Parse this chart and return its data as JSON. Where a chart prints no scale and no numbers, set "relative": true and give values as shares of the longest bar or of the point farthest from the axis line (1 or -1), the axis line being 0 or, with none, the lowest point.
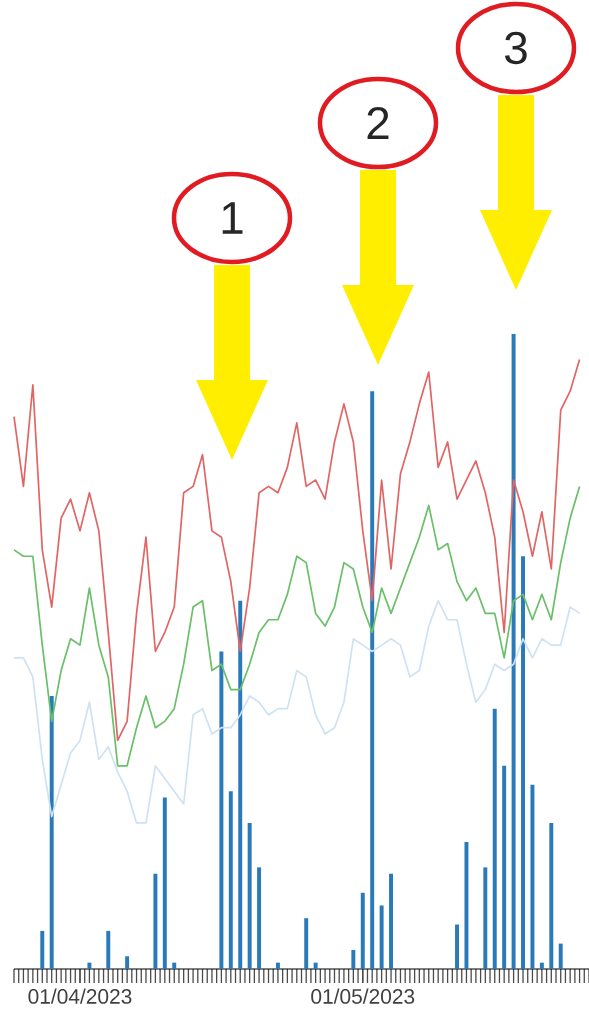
{
  "chart_data": {
    "type": "line",
    "relative": true,
    "x": [
      "2023-03-25",
      "2023-03-26",
      "2023-03-27",
      "2023-03-28",
      "2023-03-29",
      "2023-03-30",
      "2023-03-31",
      "2023-04-01",
      "2023-04-02",
      "2023-04-03",
      "2023-04-04",
      "2023-04-05",
      "2023-04-06",
      "2023-04-07",
      "2023-04-08",
      "2023-04-09",
      "2023-04-10",
      "2023-04-11",
      "2023-04-12",
      "2023-04-13",
      "2023-04-14",
      "2023-04-15",
      "2023-04-16",
      "2023-04-17",
      "2023-04-18",
      "2023-04-19",
      "2023-04-20",
      "2023-04-21",
      "2023-04-22",
      "2023-04-23",
      "2023-04-24",
      "2023-04-25",
      "2023-04-26",
      "2023-04-27",
      "2023-04-28",
      "2023-04-29",
      "2023-04-30",
      "2023-05-01",
      "2023-05-02",
      "2023-05-03",
      "2023-05-04",
      "2023-05-05",
      "2023-05-06",
      "2023-05-07",
      "2023-05-08",
      "2023-05-09",
      "2023-05-10",
      "2023-05-11",
      "2023-05-12",
      "2023-05-13",
      "2023-05-14",
      "2023-05-15",
      "2023-05-16",
      "2023-05-17",
      "2023-05-18",
      "2023-05-19",
      "2023-05-20",
      "2023-05-21",
      "2023-05-22",
      "2023-05-23",
      "2023-05-24"
    ],
    "series": [
      {
        "color": "#e06666",
        "values": [
          0.87,
          0.76,
          0.92,
          0.66,
          0.57,
          0.71,
          0.74,
          0.69,
          0.75,
          0.69,
          0.53,
          0.36,
          0.39,
          0.56,
          0.68,
          0.5,
          0.53,
          0.57,
          0.75,
          0.76,
          0.81,
          0.69,
          0.68,
          0.61,
          0.5,
          0.6,
          0.75,
          0.76,
          0.75,
          0.79,
          0.86,
          0.76,
          0.77,
          0.74,
          0.83,
          0.89,
          0.83,
          0.69,
          0.58,
          0.77,
          0.63,
          0.78,
          0.83,
          0.89,
          0.94,
          0.79,
          0.83,
          0.74,
          0.77,
          0.8,
          0.75,
          0.68,
          0.53,
          0.77,
          0.72,
          0.65,
          0.72,
          0.63,
          0.88,
          0.91,
          0.96
        ]
      },
      {
        "color": "#6abf69",
        "values": [
          0.66,
          0.65,
          0.65,
          0.51,
          0.39,
          0.47,
          0.52,
          0.51,
          0.6,
          0.51,
          0.46,
          0.32,
          0.32,
          0.38,
          0.43,
          0.38,
          0.39,
          0.41,
          0.48,
          0.57,
          0.58,
          0.47,
          0.48,
          0.44,
          0.44,
          0.48,
          0.53,
          0.55,
          0.55,
          0.59,
          0.65,
          0.64,
          0.56,
          0.54,
          0.57,
          0.64,
          0.63,
          0.57,
          0.53,
          0.6,
          0.56,
          0.6,
          0.64,
          0.68,
          0.73,
          0.66,
          0.67,
          0.61,
          0.58,
          0.6,
          0.56,
          0.56,
          0.49,
          0.58,
          0.59,
          0.55,
          0.59,
          0.55,
          0.64,
          0.71,
          0.76
        ]
      },
      {
        "color": "#cfe2f3",
        "values": [
          0.49,
          0.49,
          0.46,
          0.33,
          0.24,
          0.29,
          0.34,
          0.36,
          0.42,
          0.33,
          0.35,
          0.31,
          0.28,
          0.23,
          0.23,
          0.32,
          0.3,
          0.28,
          0.26,
          0.4,
          0.41,
          0.37,
          0.38,
          0.38,
          0.4,
          0.43,
          0.42,
          0.4,
          0.41,
          0.41,
          0.47,
          0.46,
          0.4,
          0.37,
          0.38,
          0.42,
          0.52,
          0.51,
          0.5,
          0.51,
          0.52,
          0.51,
          0.46,
          0.47,
          0.54,
          0.58,
          0.55,
          0.55,
          0.48,
          0.42,
          0.44,
          0.48,
          0.47,
          0.48,
          0.52,
          0.49,
          0.52,
          0.51,
          0.51,
          0.57,
          0.56
        ]
      },
      {
        "type": "bar",
        "color": "#2a7ab9",
        "values": [
          0,
          0,
          0,
          0.06,
          0.43,
          0,
          0,
          0,
          0.01,
          0,
          0.06,
          0,
          0.02,
          0,
          0,
          0.15,
          0.27,
          0.01,
          0,
          0,
          0,
          0,
          0.5,
          0.28,
          0.58,
          0.23,
          0.16,
          0,
          0.01,
          0,
          0,
          0.08,
          0.01,
          0,
          0,
          0,
          0.03,
          0.12,
          0.91,
          0.1,
          0.15,
          0,
          0,
          0,
          0,
          0,
          0,
          0.07,
          0.2,
          0,
          0.16,
          0.41,
          0.32,
          1,
          0.65,
          0.29,
          0.01,
          0.23,
          0.04,
          0,
          0
        ]
      }
    ],
    "xlim": [
      "2023-03-25",
      "2023-05-25"
    ],
    "xticks": [
      {
        "value": "2023-04-01",
        "label": "01/04/2023"
      },
      {
        "value": "2023-05-01",
        "label": "01/05/2023"
      }
    ],
    "annotations": [
      "1",
      "2",
      "3"
    ]
  }
}
